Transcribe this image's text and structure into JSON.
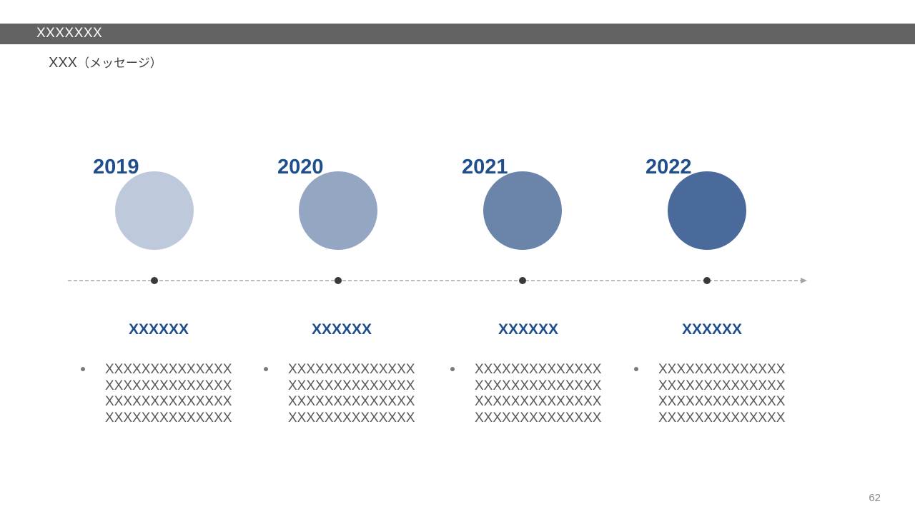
{
  "header": {
    "title": "XXXXXXX"
  },
  "subtitle": {
    "main": "XXX",
    "note": "（メッセージ）"
  },
  "timeline": {
    "milestones": [
      {
        "year": "2019",
        "color": "#bec9dc",
        "heading": "XXXXXX",
        "lines": [
          "XXXXXXXXXXXXXX",
          "XXXXXXXXXXXXXX",
          "XXXXXXXXXXXXXX",
          "XXXXXXXXXXXXXX"
        ]
      },
      {
        "year": "2020",
        "color": "#95a6c2",
        "heading": "XXXXXX",
        "lines": [
          "XXXXXXXXXXXXXX",
          "XXXXXXXXXXXXXX",
          "XXXXXXXXXXXXXX",
          "XXXXXXXXXXXXXX"
        ]
      },
      {
        "year": "2021",
        "color": "#6b84aa",
        "heading": "XXXXXX",
        "lines": [
          "XXXXXXXXXXXXXX",
          "XXXXXXXXXXXXXX",
          "XXXXXXXXXXXXXX",
          "XXXXXXXXXXXXXX"
        ]
      },
      {
        "year": "2022",
        "color": "#4a6a9b",
        "heading": "XXXXXX",
        "lines": [
          "XXXXXXXXXXXXXX",
          "XXXXXXXXXXXXXX",
          "XXXXXXXXXXXXXX",
          "XXXXXXXXXXXXXX"
        ]
      }
    ]
  },
  "footer": {
    "page_number": "62"
  }
}
